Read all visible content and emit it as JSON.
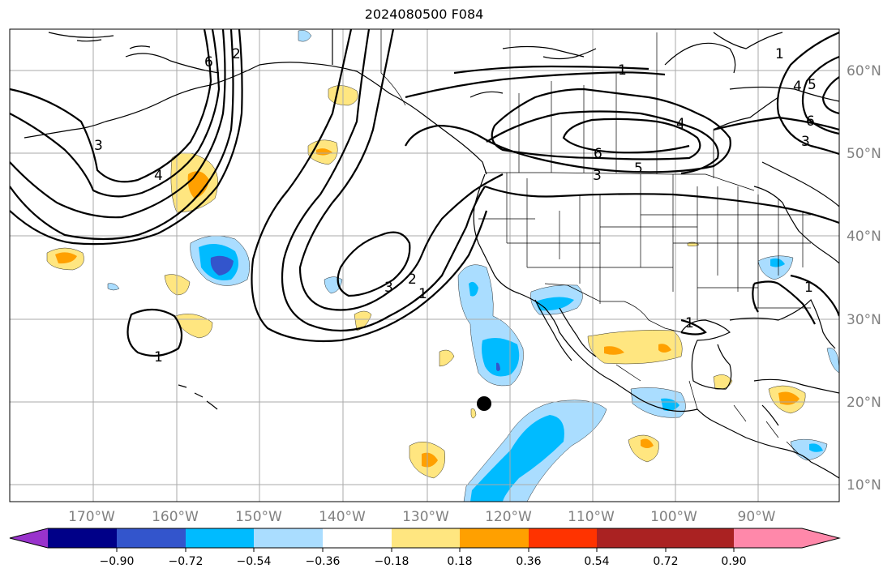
{
  "title": "2024080500 F084",
  "lon_labels": [
    "170°W",
    "160°W",
    "150°W",
    "140°W",
    "130°W",
    "120°W",
    "110°W",
    "100°W",
    "90°W"
  ],
  "lat_labels": [
    "60°N",
    "50°N",
    "40°N",
    "30°N",
    "20°N",
    "10°N"
  ],
  "colorbar": {
    "colors": [
      "#9933cc",
      "#000088",
      "#3355cc",
      "#00bbff",
      "#aaddff",
      "#ffffff",
      "#ffe680",
      "#ffa000",
      "#ff3300",
      "#aa2222",
      "#ff88aa"
    ],
    "tick_labels": [
      "−0.90",
      "−0.72",
      "−0.54",
      "−0.36",
      "−0.18",
      "0.18",
      "0.36",
      "0.54",
      "0.72",
      "0.90"
    ]
  },
  "contour_labels": [
    "6",
    "2",
    "3",
    "4",
    "3",
    "2",
    "1",
    "1",
    "6",
    "3",
    "5",
    "4",
    "1",
    "1",
    "4",
    "5",
    "6",
    "3",
    "1",
    "1"
  ],
  "storm_marker": "black-dot"
}
